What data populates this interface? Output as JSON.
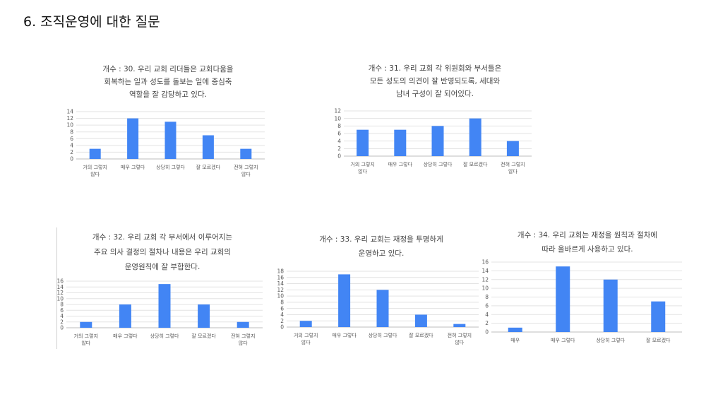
{
  "page": {
    "title": "6. 조직운영에 대한 질문"
  },
  "chart_data": [
    {
      "type": "bar",
      "title": [
        "개수 : 30. 우리 교회 리더들은 교회다움을",
        "회복하는 일과 성도를 돌보는 일에 중심축",
        "역할을 잘 감당하고 있다."
      ],
      "categories": [
        [
          "거의 그렇지",
          "않다"
        ],
        [
          "매우 그렇다"
        ],
        [
          "상당히 그렇다"
        ],
        [
          "잘 모르겠다"
        ],
        [
          "전혀 그렇지",
          "않다"
        ]
      ],
      "values": [
        3,
        12,
        11,
        7,
        3
      ],
      "yticks": [
        0,
        2,
        4,
        6,
        8,
        10,
        12,
        14
      ],
      "ylim": [
        0,
        14
      ],
      "color": "#4285f4"
    },
    {
      "type": "bar",
      "title": [
        "개수 : 31. 우리 교회 각 위원회와 부서들은",
        "모든 성도의 의견이 잘 반영되도록, 세대와",
        "남녀 구성이 잘 되어있다."
      ],
      "categories": [
        [
          "거의 그렇지",
          "않다"
        ],
        [
          "매우 그렇다"
        ],
        [
          "상당히 그렇다"
        ],
        [
          "잘 모르겠다"
        ],
        [
          "전혀 그렇지",
          "않다"
        ]
      ],
      "values": [
        7,
        7,
        8,
        10,
        4
      ],
      "yticks": [
        0,
        2,
        4,
        6,
        8,
        10,
        12
      ],
      "ylim": [
        0,
        12
      ],
      "color": "#4285f4"
    },
    {
      "type": "bar",
      "title": [
        "개수 : 32. 우리 교회 각 부서에서 이루어지는",
        "주요 의사 결정의 절차나 내용은 우리 교회의",
        "운영원칙에 잘 부합한다."
      ],
      "categories": [
        [
          "거의 그렇지",
          "않다"
        ],
        [
          "매우 그렇다"
        ],
        [
          "상당히 그렇다"
        ],
        [
          "잘 모르겠다"
        ],
        [
          "전혀 그렇지",
          "않다"
        ]
      ],
      "values": [
        2,
        8,
        15,
        8,
        2
      ],
      "yticks": [
        0,
        2,
        4,
        6,
        8,
        10,
        12,
        14,
        16
      ],
      "ylim": [
        0,
        16
      ],
      "color": "#4285f4"
    },
    {
      "type": "bar",
      "title": [
        "개수 : 33. 우리 교회는 재정을 투명하게",
        "운영하고 있다."
      ],
      "categories": [
        [
          "거의 그렇지",
          "않다"
        ],
        [
          "매우 그렇다"
        ],
        [
          "상당히 그렇다"
        ],
        [
          "잘 모르겠다"
        ],
        [
          "전혀 그렇지",
          "않다"
        ]
      ],
      "values": [
        2,
        17,
        12,
        4,
        1
      ],
      "yticks": [
        0,
        2,
        4,
        6,
        8,
        10,
        12,
        14,
        16,
        18
      ],
      "ylim": [
        0,
        18
      ],
      "color": "#4285f4"
    },
    {
      "type": "bar",
      "title": [
        "개수 : 34. 우리 교회는 재정을 원칙과 절차에",
        "따라 올바르게 사용하고 있다."
      ],
      "categories": [
        [
          "매우"
        ],
        [
          "매우 그렇다"
        ],
        [
          "상당히 그렇다"
        ],
        [
          "잘 모르겠다"
        ]
      ],
      "values": [
        1,
        15,
        12,
        7
      ],
      "yticks": [
        0,
        2,
        4,
        6,
        8,
        10,
        12,
        14,
        16
      ],
      "ylim": [
        0,
        16
      ],
      "color": "#4285f4"
    }
  ]
}
